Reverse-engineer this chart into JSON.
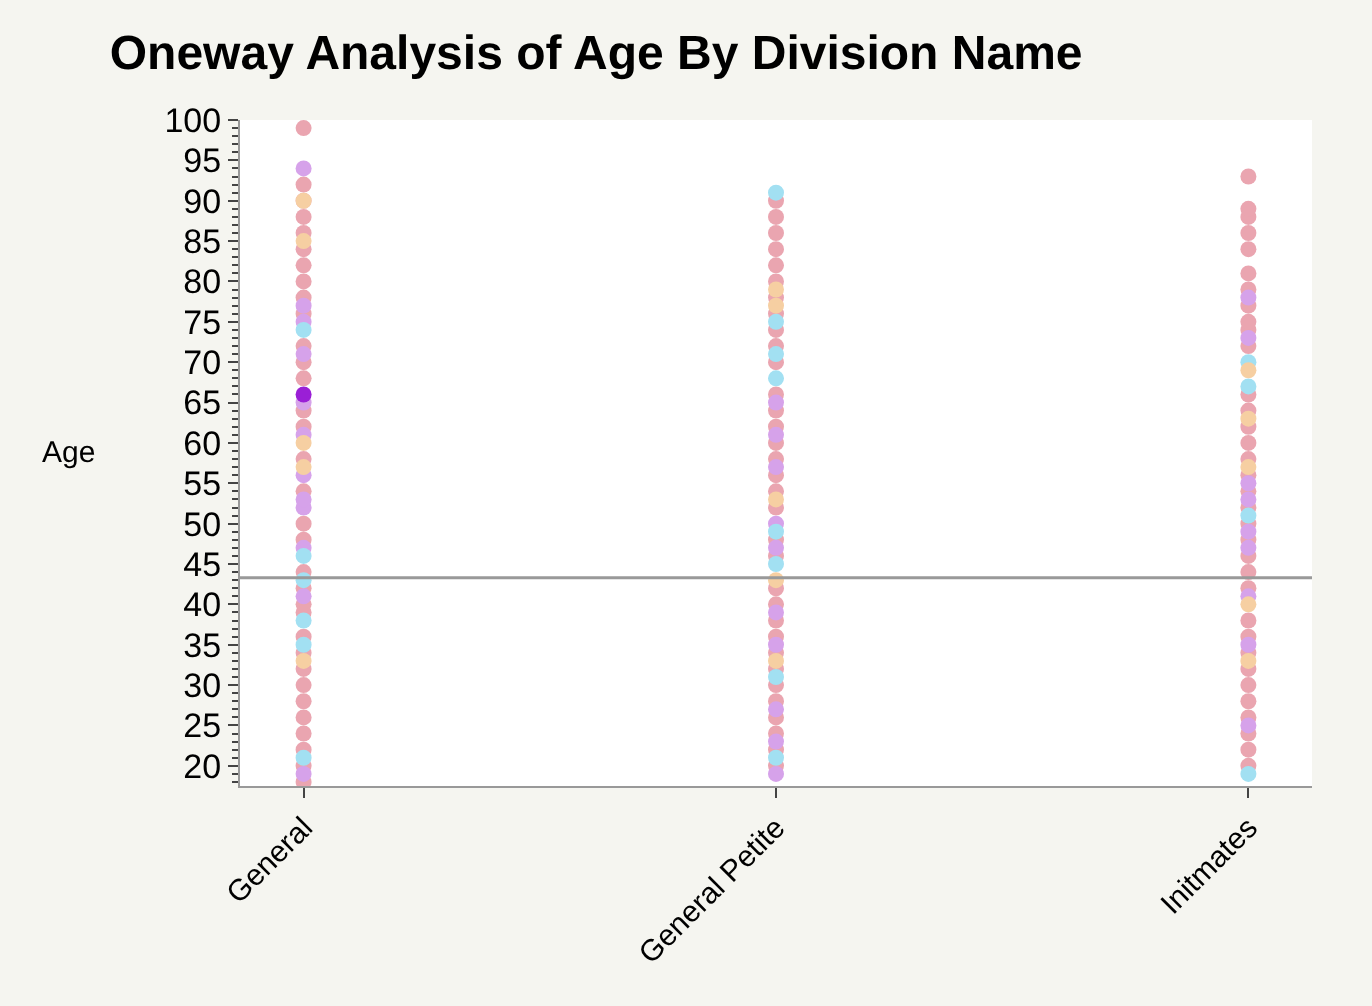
{
  "chart_data": {
    "type": "scatter",
    "title": "Oneway Analysis of Age By Division Name",
    "ylabel": "Age",
    "categories": [
      "General",
      "General Petite",
      "Initmates"
    ],
    "series": [
      {
        "color": "#eaa5b0",
        "x": [
          "General",
          "General",
          "General",
          "General",
          "General",
          "General",
          "General",
          "General",
          "General",
          "General",
          "General",
          "General",
          "General",
          "General",
          "General",
          "General",
          "General",
          "General",
          "General",
          "General",
          "General",
          "General",
          "General",
          "General",
          "General",
          "General",
          "General",
          "General",
          "General",
          "General",
          "General",
          "General",
          "General",
          "General Petite",
          "General Petite",
          "General Petite",
          "General Petite",
          "General Petite",
          "General Petite",
          "General Petite",
          "General Petite",
          "General Petite",
          "General Petite",
          "General Petite",
          "General Petite",
          "General Petite",
          "General Petite",
          "General Petite",
          "General Petite",
          "General Petite",
          "General Petite",
          "General Petite",
          "General Petite",
          "General Petite",
          "General Petite",
          "General Petite",
          "General Petite",
          "General Petite",
          "General Petite",
          "General Petite",
          "General Petite",
          "General Petite",
          "General Petite",
          "General Petite",
          "General Petite",
          "General Petite",
          "Initmates",
          "Initmates",
          "Initmates",
          "Initmates",
          "Initmates",
          "Initmates",
          "Initmates",
          "Initmates",
          "Initmates",
          "Initmates",
          "Initmates",
          "Initmates",
          "Initmates",
          "Initmates",
          "Initmates",
          "Initmates",
          "Initmates",
          "Initmates",
          "Initmates",
          "Initmates",
          "Initmates",
          "Initmates",
          "Initmates",
          "Initmates",
          "Initmates",
          "Initmates",
          "Initmates",
          "Initmates",
          "Initmates",
          "Initmates",
          "Initmates",
          "Initmates",
          "Initmates",
          "Initmates"
        ],
        "values": [
          18,
          20,
          22,
          24,
          26,
          28,
          30,
          32,
          34,
          36,
          39,
          40,
          42,
          44,
          48,
          50,
          54,
          58,
          62,
          64,
          68,
          70,
          72,
          76,
          78,
          80,
          82,
          84,
          86,
          88,
          90,
          92,
          99,
          20,
          22,
          24,
          26,
          28,
          30,
          32,
          34,
          36,
          38,
          40,
          42,
          46,
          48,
          52,
          54,
          56,
          58,
          60,
          62,
          64,
          66,
          70,
          72,
          74,
          76,
          78,
          80,
          82,
          84,
          86,
          88,
          90,
          20,
          22,
          24,
          26,
          28,
          30,
          32,
          34,
          36,
          38,
          42,
          44,
          46,
          48,
          50,
          52,
          54,
          56,
          58,
          60,
          62,
          64,
          66,
          72,
          74,
          75,
          77,
          79,
          81,
          84,
          86,
          88,
          89,
          93
        ]
      },
      {
        "color": "#d6a2ea",
        "x": [
          "General",
          "General",
          "General",
          "General",
          "General",
          "General",
          "General",
          "General",
          "General",
          "General",
          "General",
          "General",
          "General Petite",
          "General Petite",
          "General Petite",
          "General Petite",
          "General Petite",
          "General Petite",
          "General Petite",
          "General Petite",
          "General Petite",
          "General Petite",
          "Initmates",
          "Initmates",
          "Initmates",
          "Initmates",
          "Initmates",
          "Initmates",
          "Initmates",
          "Initmates",
          "Initmates"
        ],
        "values": [
          19,
          41,
          47,
          52,
          53,
          56,
          61,
          65,
          71,
          75,
          77,
          94,
          19,
          23,
          27,
          35,
          39,
          47,
          50,
          57,
          61,
          65,
          25,
          35,
          41,
          47,
          49,
          53,
          55,
          73,
          78
        ]
      },
      {
        "color": "#a2e0f2",
        "x": [
          "General",
          "General",
          "General",
          "General",
          "General",
          "General",
          "General Petite",
          "General Petite",
          "General Petite",
          "General Petite",
          "General Petite",
          "General Petite",
          "General Petite",
          "General Petite",
          "Initmates",
          "Initmates",
          "Initmates",
          "Initmates"
        ],
        "values": [
          21,
          35,
          38,
          43,
          46,
          74,
          21,
          31,
          45,
          49,
          68,
          71,
          75,
          91,
          19,
          51,
          67,
          70
        ]
      },
      {
        "color": "#f6cfa2",
        "x": [
          "General",
          "General",
          "General",
          "General",
          "General",
          "General Petite",
          "General Petite",
          "General Petite",
          "General Petite",
          "General Petite",
          "Initmates",
          "Initmates",
          "Initmates",
          "Initmates",
          "Initmates"
        ],
        "values": [
          33,
          57,
          60,
          85,
          90,
          33,
          43,
          53,
          77,
          79,
          33,
          40,
          57,
          63,
          69
        ]
      },
      {
        "color": "#9a1fd6",
        "x": [
          "General"
        ],
        "values": [
          66
        ]
      }
    ],
    "marker": "circle",
    "ylim": [
      17.5,
      100
    ],
    "yticks": [
      20,
      25,
      30,
      35,
      40,
      45,
      50,
      55,
      60,
      65,
      70,
      75,
      80,
      85,
      90,
      95,
      100
    ],
    "ref_lines": [
      {
        "axis": "y",
        "value": 43.3,
        "color": "#999999"
      }
    ]
  }
}
